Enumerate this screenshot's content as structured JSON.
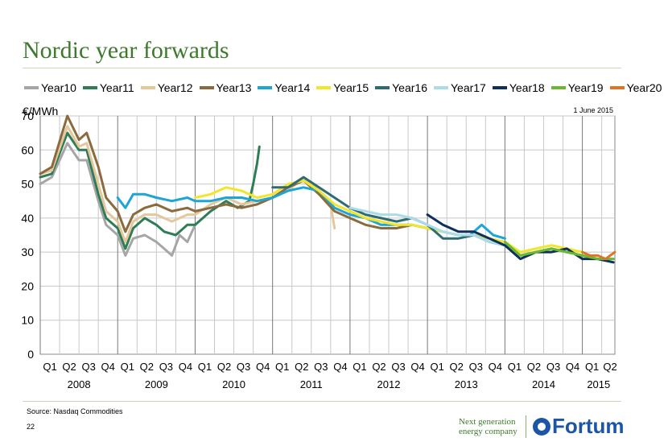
{
  "header": {
    "title": "Nordic year forwards"
  },
  "unit_label": "€/MWh",
  "date_note": "1 June 2015",
  "footer": {
    "source": "Source: Nasdaq Commodities",
    "page": "22",
    "tagline": "Next generation energy company",
    "logo_text": "Fortum"
  },
  "colors": {
    "Year10": "#a6a6a6",
    "Year11": "#2e7d57",
    "Year12": "#e5c79b",
    "Year13": "#8b6a3e",
    "Year14": "#1da5d6",
    "Year15": "#f2e52a",
    "Year16": "#2f6b73",
    "Year17": "#a9dbe8",
    "Year18": "#10305c",
    "Year19": "#6ab82e",
    "Year20": "#e07426"
  },
  "chart_data": {
    "type": "line",
    "title": "Nordic year forwards",
    "ylabel": "€/MWh",
    "ylim": [
      0,
      70
    ],
    "yticks": [
      0,
      10,
      20,
      30,
      40,
      50,
      60,
      70
    ],
    "xlim": [
      2008.0,
      2015.42
    ],
    "quarter_labels": [
      "Q1",
      "Q2",
      "Q3",
      "Q4",
      "Q1",
      "Q2",
      "Q3",
      "Q4",
      "Q1",
      "Q2",
      "Q3",
      "Q4",
      "Q1",
      "Q2",
      "Q3",
      "Q4",
      "Q1",
      "Q2",
      "Q3",
      "Q4",
      "Q1",
      "Q2",
      "Q3",
      "Q4",
      "Q1",
      "Q2",
      "Q3",
      "Q4",
      "Q1",
      "Q2"
    ],
    "year_labels": [
      "2008",
      "2009",
      "2010",
      "2011",
      "2012",
      "2013",
      "2014",
      "2015"
    ],
    "grid": true,
    "legend": "top",
    "series": [
      {
        "name": "Year10",
        "x": [
          2008.0,
          2008.15,
          2008.35,
          2008.5,
          2008.6,
          2008.75,
          2008.85,
          2009.0,
          2009.1,
          2009.2,
          2009.35,
          2009.5,
          2009.6,
          2009.7,
          2009.8,
          2009.9,
          2010.0
        ],
        "y": [
          50,
          52,
          62,
          57,
          57,
          45,
          38,
          35,
          29,
          34,
          35,
          33,
          31,
          29,
          35,
          33,
          38
        ]
      },
      {
        "name": "Year11",
        "x": [
          2008.0,
          2008.15,
          2008.35,
          2008.5,
          2008.6,
          2008.75,
          2008.85,
          2009.0,
          2009.1,
          2009.2,
          2009.35,
          2009.5,
          2009.6,
          2009.75,
          2009.9,
          2010.0,
          2010.2,
          2010.4,
          2010.55,
          2010.7,
          2010.75,
          2010.8,
          2010.83
        ],
        "y": [
          52,
          53,
          65,
          60,
          60,
          47,
          40,
          37,
          31,
          37,
          40,
          38,
          36,
          35,
          38,
          38,
          42,
          45,
          43,
          45,
          50,
          56,
          61
        ]
      },
      {
        "name": "Year12",
        "x": [
          2008.0,
          2008.15,
          2008.35,
          2008.5,
          2008.6,
          2008.75,
          2008.85,
          2009.0,
          2009.1,
          2009.2,
          2009.35,
          2009.5,
          2009.7,
          2009.9,
          2010.0,
          2010.2,
          2010.4,
          2010.6,
          2010.8,
          2011.0,
          2011.2,
          2011.4,
          2011.6,
          2011.75,
          2011.8
        ],
        "y": [
          53,
          54,
          67,
          61,
          62,
          50,
          42,
          39,
          33,
          39,
          41,
          41,
          39,
          41,
          41,
          44,
          46,
          44,
          45,
          46,
          48,
          52,
          48,
          44,
          37
        ]
      },
      {
        "name": "Year13",
        "x": [
          2008.0,
          2008.15,
          2008.35,
          2008.5,
          2008.6,
          2008.75,
          2008.85,
          2009.0,
          2009.1,
          2009.2,
          2009.35,
          2009.5,
          2009.7,
          2009.9,
          2010.0,
          2010.2,
          2010.4,
          2010.6,
          2010.8,
          2011.0,
          2011.2,
          2011.4,
          2011.6,
          2011.8,
          2012.0,
          2012.2,
          2012.4,
          2012.6,
          2012.8
        ],
        "y": [
          53,
          55,
          70,
          63,
          65,
          55,
          46,
          42,
          36,
          41,
          43,
          44,
          42,
          43,
          42,
          43,
          44,
          43,
          44,
          46,
          49,
          51,
          47,
          42,
          40,
          38,
          37,
          37,
          38
        ]
      },
      {
        "name": "Year14",
        "x": [
          2009.0,
          2009.1,
          2009.2,
          2009.35,
          2009.5,
          2009.7,
          2009.9,
          2010.0,
          2010.2,
          2010.4,
          2010.6,
          2010.8,
          2011.0,
          2011.2,
          2011.4,
          2011.6,
          2011.8,
          2012.0,
          2012.2,
          2012.4,
          2012.6,
          2012.8,
          2013.0,
          2013.2,
          2013.4,
          2013.55,
          2013.7,
          2013.85,
          2014.0
        ],
        "y": [
          46,
          43,
          47,
          47,
          46,
          45,
          46,
          45,
          45,
          46,
          46,
          45,
          46,
          48,
          49,
          48,
          43,
          41,
          40,
          38,
          38,
          38,
          37,
          36,
          35,
          35,
          38,
          35,
          34
        ]
      },
      {
        "name": "Year15",
        "x": [
          2010.0,
          2010.2,
          2010.4,
          2010.6,
          2010.8,
          2011.0,
          2011.2,
          2011.4,
          2011.6,
          2011.8,
          2012.0,
          2012.2,
          2012.4,
          2012.6,
          2012.8,
          2013.0,
          2013.2,
          2013.4,
          2013.6,
          2013.8,
          2014.0,
          2014.2,
          2014.4,
          2014.6,
          2014.8,
          2015.0
        ],
        "y": [
          46,
          47,
          49,
          48,
          46,
          47,
          50,
          51,
          48,
          44,
          42,
          40,
          39,
          38,
          38,
          37,
          36,
          35,
          35,
          34,
          33,
          30,
          31,
          32,
          31,
          30
        ]
      },
      {
        "name": "Year16",
        "x": [
          2011.0,
          2011.2,
          2011.4,
          2011.6,
          2011.8,
          2012.0,
          2012.2,
          2012.4,
          2012.6,
          2012.8,
          2013.0,
          2013.2,
          2013.4,
          2013.6,
          2013.8,
          2014.0,
          2014.2,
          2014.4,
          2014.6,
          2014.8,
          2015.0,
          2015.2,
          2015.4
        ],
        "y": [
          49,
          49,
          52,
          49,
          46,
          43,
          41,
          40,
          39,
          40,
          38,
          34,
          34,
          35,
          33,
          32,
          29,
          30,
          31,
          30,
          29,
          28,
          27
        ]
      },
      {
        "name": "Year17",
        "x": [
          2012.0,
          2012.2,
          2012.4,
          2012.6,
          2012.8,
          2013.0,
          2013.2,
          2013.4,
          2013.6,
          2013.8,
          2014.0,
          2014.2,
          2014.4,
          2014.6,
          2014.8,
          2015.0,
          2015.2,
          2015.4
        ],
        "y": [
          43,
          42,
          41,
          41,
          40,
          38,
          36,
          35,
          35,
          33,
          32,
          29,
          30,
          31,
          30,
          29,
          28,
          27
        ]
      },
      {
        "name": "Year18",
        "x": [
          2013.0,
          2013.2,
          2013.4,
          2013.6,
          2013.8,
          2014.0,
          2014.2,
          2014.4,
          2014.6,
          2014.8,
          2015.0,
          2015.2,
          2015.4
        ],
        "y": [
          41,
          38,
          36,
          36,
          34,
          32,
          28,
          30,
          30,
          31,
          28,
          28,
          27
        ]
      },
      {
        "name": "Year19",
        "x": [
          2014.0,
          2014.2,
          2014.4,
          2014.6,
          2014.8,
          2015.0,
          2015.2,
          2015.4
        ],
        "y": [
          33,
          29,
          30,
          31,
          30,
          29,
          28,
          28
        ]
      },
      {
        "name": "Year20",
        "x": [
          2015.0,
          2015.1,
          2015.2,
          2015.3,
          2015.42
        ],
        "y": [
          30,
          29,
          29,
          28,
          30
        ]
      }
    ]
  }
}
